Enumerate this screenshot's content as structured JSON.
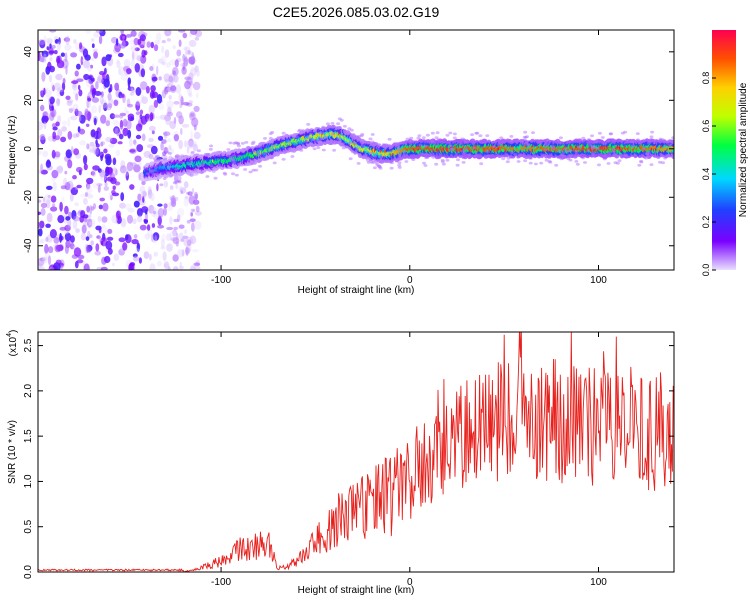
{
  "figure_title": "C2E5.2026.085.03.02.G19",
  "chart_data": [
    {
      "type": "heatmap",
      "xlabel": "Height of straight line (km)",
      "ylabel": "Frequency (Hz)",
      "xlim": [
        -197,
        140
      ],
      "ylim": [
        -50,
        49
      ],
      "xticks": [
        -100,
        0,
        100
      ],
      "xtick_labels": [
        "-100",
        "0",
        "100"
      ],
      "yticks": [
        -40,
        -20,
        0,
        20,
        40
      ],
      "ytick_labels": [
        "-40",
        "-20",
        "0",
        "20",
        "40"
      ],
      "colorbar": {
        "label": "Normalized spectral amplitude",
        "range": [
          0,
          1
        ],
        "ticks": [
          0,
          0.2,
          0.4,
          0.6,
          0.8
        ],
        "tick_labels": [
          "0.0",
          "0.2",
          "0.4",
          "0.6",
          "0.8"
        ],
        "colors": [
          "#e8e0ff",
          "#7a00ff",
          "#2040ff",
          "#00d8ff",
          "#00ff40",
          "#c0ff00",
          "#ffd000",
          "#ff5000",
          "#ff0050"
        ]
      },
      "noise_region_x": [
        -197,
        -118
      ],
      "ridge": {
        "x": [
          -140,
          -130,
          -120,
          -110,
          -100,
          -90,
          -80,
          -70,
          -60,
          -50,
          -45,
          -40,
          -35,
          -30,
          -25,
          -20,
          -15,
          -10,
          0,
          20,
          40,
          60,
          80,
          100,
          120,
          140
        ],
        "freq": [
          -10,
          -8,
          -7,
          -6,
          -5,
          -4,
          -2,
          1,
          3,
          5,
          5.5,
          6,
          5,
          2,
          0,
          -1,
          -2,
          -2,
          0,
          0,
          0,
          0,
          0,
          0,
          0,
          0
        ],
        "amplitude": [
          0.25,
          0.35,
          0.45,
          0.45,
          0.5,
          0.5,
          0.55,
          0.6,
          0.6,
          0.65,
          0.7,
          0.75,
          0.7,
          0.7,
          0.7,
          0.75,
          0.75,
          0.75,
          0.9,
          0.95,
          0.9,
          0.85,
          0.9,
          0.95,
          0.9,
          0.8
        ]
      }
    },
    {
      "type": "line",
      "xlabel": "Height of straight line (km)",
      "ylabel": "SNR (10 * v/v)",
      "y_multiplier": "(x10",
      "y_multiplier_exp": "4",
      "xlim": [
        -197,
        140
      ],
      "ylim": [
        0,
        2.65
      ],
      "xticks": [
        -100,
        0,
        100
      ],
      "xtick_labels": [
        "-100",
        "0",
        "100"
      ],
      "yticks": [
        0,
        0.5,
        1,
        1.5,
        2,
        2.5
      ],
      "ytick_labels": [
        "0.0",
        "0.5",
        "1.0",
        "1.5",
        "2.0",
        "2.5"
      ],
      "color": "#e8201c",
      "envelope": {
        "x": [
          -197,
          -120,
          -110,
          -100,
          -90,
          -80,
          -75,
          -70,
          -65,
          -60,
          -55,
          -50,
          -40,
          -30,
          -20,
          -10,
          0,
          10,
          20,
          30,
          40,
          50,
          60,
          80,
          100,
          120,
          140
        ],
        "y": [
          0.0,
          0.0,
          0.05,
          0.12,
          0.25,
          0.28,
          0.3,
          0.05,
          0.05,
          0.12,
          0.2,
          0.35,
          0.5,
          0.65,
          0.75,
          0.85,
          1.0,
          1.15,
          1.35,
          1.5,
          1.6,
          1.7,
          1.72,
          1.65,
          1.6,
          1.55,
          1.5
        ]
      },
      "peak": {
        "x": 50,
        "y": 2.62
      }
    }
  ]
}
